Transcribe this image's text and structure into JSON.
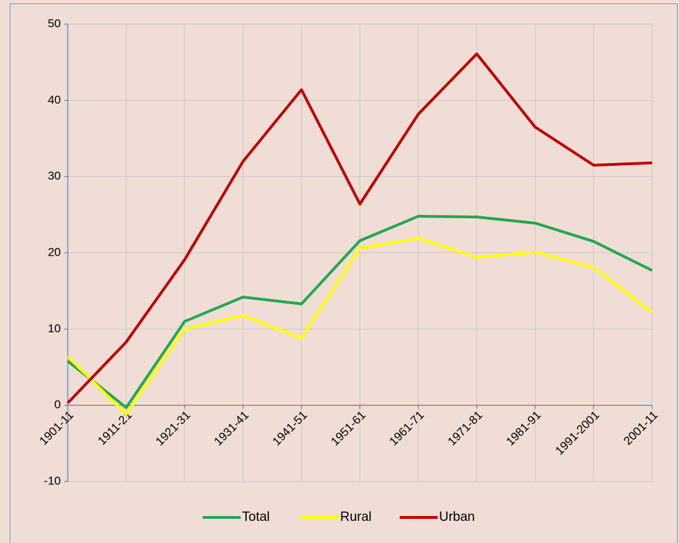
{
  "chart_data": {
    "type": "line",
    "categories": [
      "1901-11",
      "1911-21",
      "1921-31",
      "1931-41",
      "1941-51",
      "1951-61",
      "1961-71",
      "1971-81",
      "1981-91",
      "1991-2001",
      "2001-11"
    ],
    "series": [
      {
        "name": "Total",
        "color": "#21a84f",
        "values": [
          5.8,
          -0.3,
          11.0,
          14.2,
          13.3,
          21.6,
          24.8,
          24.7,
          23.9,
          21.5,
          17.7
        ]
      },
      {
        "name": "Rural",
        "color": "#ffff00",
        "values": [
          6.4,
          -1.2,
          10.0,
          11.8,
          8.8,
          20.6,
          21.9,
          19.4,
          20.1,
          18.1,
          12.2
        ]
      },
      {
        "name": "Urban",
        "color": "#c00000",
        "values": [
          0.3,
          8.3,
          19.1,
          32.0,
          41.4,
          26.4,
          38.2,
          46.1,
          36.5,
          31.5,
          31.8
        ]
      }
    ],
    "ylim": [
      -10,
      50
    ],
    "yticks": [
      -10,
      0,
      10,
      20,
      30,
      40,
      50
    ],
    "grid": true,
    "legend": "bottom"
  }
}
